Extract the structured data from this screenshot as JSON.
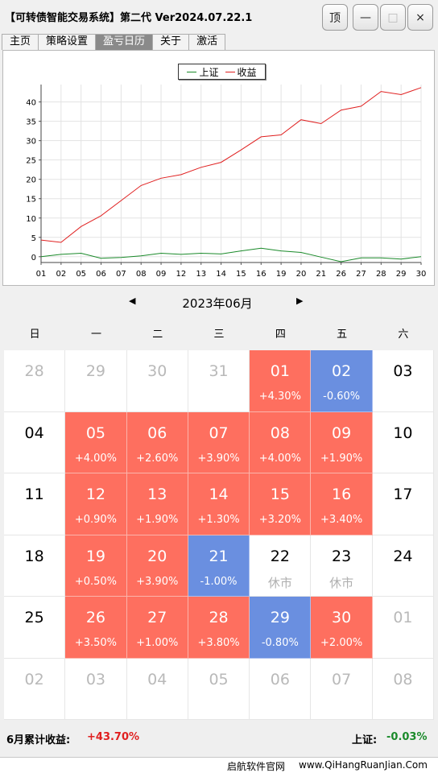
{
  "window": {
    "title": "【可转债智能交易系统】第二代 Ver2024.07.22.1",
    "buttons": {
      "top": "顶",
      "minimize": "—",
      "maximize": "□",
      "close": "×"
    }
  },
  "tabs": [
    {
      "label": "主页"
    },
    {
      "label": "策略设置"
    },
    {
      "label": "盈亏日历",
      "active": true
    },
    {
      "label": "关于"
    },
    {
      "label": "激活"
    }
  ],
  "chart_data": {
    "type": "line",
    "x": [
      "01",
      "02",
      "05",
      "06",
      "07",
      "08",
      "09",
      "12",
      "13",
      "14",
      "15",
      "16",
      "19",
      "20",
      "21",
      "26",
      "27",
      "28",
      "29",
      "30"
    ],
    "series": [
      {
        "name": "上证",
        "color": "#1a8a2a",
        "values": [
          0.0,
          0.6,
          0.9,
          -0.4,
          -0.2,
          0.2,
          0.9,
          0.6,
          0.9,
          0.7,
          1.5,
          2.2,
          1.5,
          1.1,
          -0.1,
          -1.3,
          -0.3,
          -0.3,
          -0.6,
          0.0
        ]
      },
      {
        "name": "收益",
        "color": "#e02020",
        "values": [
          4.3,
          3.7,
          7.8,
          10.6,
          14.5,
          18.4,
          20.3,
          21.2,
          23.1,
          24.4,
          27.6,
          31.0,
          31.5,
          35.4,
          34.4,
          37.9,
          38.9,
          42.7,
          41.9,
          43.7
        ]
      }
    ],
    "yticks": [
      0,
      5,
      10,
      15,
      20,
      25,
      30,
      35,
      40
    ],
    "ylim": [
      -1.5,
      44.5
    ],
    "legend": "top-center",
    "grid": true
  },
  "calendar": {
    "month_label": "2023年06月",
    "prev_arrow": "◀",
    "next_arrow": "▶",
    "weekdays": [
      "日",
      "一",
      "二",
      "三",
      "四",
      "五",
      "六"
    ],
    "closed_label": "休市",
    "weeks": [
      [
        {
          "day": "28",
          "other": true
        },
        {
          "day": "29",
          "other": true
        },
        {
          "day": "30",
          "other": true
        },
        {
          "day": "31",
          "other": true
        },
        {
          "day": "01",
          "pct": "+4.30%",
          "dir": "up"
        },
        {
          "day": "02",
          "pct": "-0.60%",
          "dir": "down"
        },
        {
          "day": "03"
        }
      ],
      [
        {
          "day": "04"
        },
        {
          "day": "05",
          "pct": "+4.00%",
          "dir": "up"
        },
        {
          "day": "06",
          "pct": "+2.60%",
          "dir": "up"
        },
        {
          "day": "07",
          "pct": "+3.90%",
          "dir": "up"
        },
        {
          "day": "08",
          "pct": "+4.00%",
          "dir": "up"
        },
        {
          "day": "09",
          "pct": "+1.90%",
          "dir": "up"
        },
        {
          "day": "10"
        }
      ],
      [
        {
          "day": "11"
        },
        {
          "day": "12",
          "pct": "+0.90%",
          "dir": "up"
        },
        {
          "day": "13",
          "pct": "+1.90%",
          "dir": "up"
        },
        {
          "day": "14",
          "pct": "+1.30%",
          "dir": "up"
        },
        {
          "day": "15",
          "pct": "+3.20%",
          "dir": "up"
        },
        {
          "day": "16",
          "pct": "+3.40%",
          "dir": "up"
        },
        {
          "day": "17"
        }
      ],
      [
        {
          "day": "18"
        },
        {
          "day": "19",
          "pct": "+0.50%",
          "dir": "up"
        },
        {
          "day": "20",
          "pct": "+3.90%",
          "dir": "up"
        },
        {
          "day": "21",
          "pct": "-1.00%",
          "dir": "down"
        },
        {
          "day": "22",
          "closed": true
        },
        {
          "day": "23",
          "closed": true
        },
        {
          "day": "24"
        }
      ],
      [
        {
          "day": "25"
        },
        {
          "day": "26",
          "pct": "+3.50%",
          "dir": "up"
        },
        {
          "day": "27",
          "pct": "+1.00%",
          "dir": "up"
        },
        {
          "day": "28",
          "pct": "+3.80%",
          "dir": "up"
        },
        {
          "day": "29",
          "pct": "-0.80%",
          "dir": "down"
        },
        {
          "day": "30",
          "pct": "+2.00%",
          "dir": "up"
        },
        {
          "day": "01",
          "other": true
        }
      ],
      [
        {
          "day": "02",
          "other": true
        },
        {
          "day": "03",
          "other": true
        },
        {
          "day": "04",
          "other": true
        },
        {
          "day": "05",
          "other": true
        },
        {
          "day": "06",
          "other": true
        },
        {
          "day": "07",
          "other": true
        },
        {
          "day": "08",
          "other": true
        }
      ]
    ]
  },
  "summary": {
    "month_label": "6月累计收益:",
    "month_value": "+43.70%",
    "index_label": "上证:",
    "index_value": "-0.03%"
  },
  "footer": {
    "site_name": "启航软件官网",
    "site_url": "www.QiHangRuanJian.Com"
  }
}
